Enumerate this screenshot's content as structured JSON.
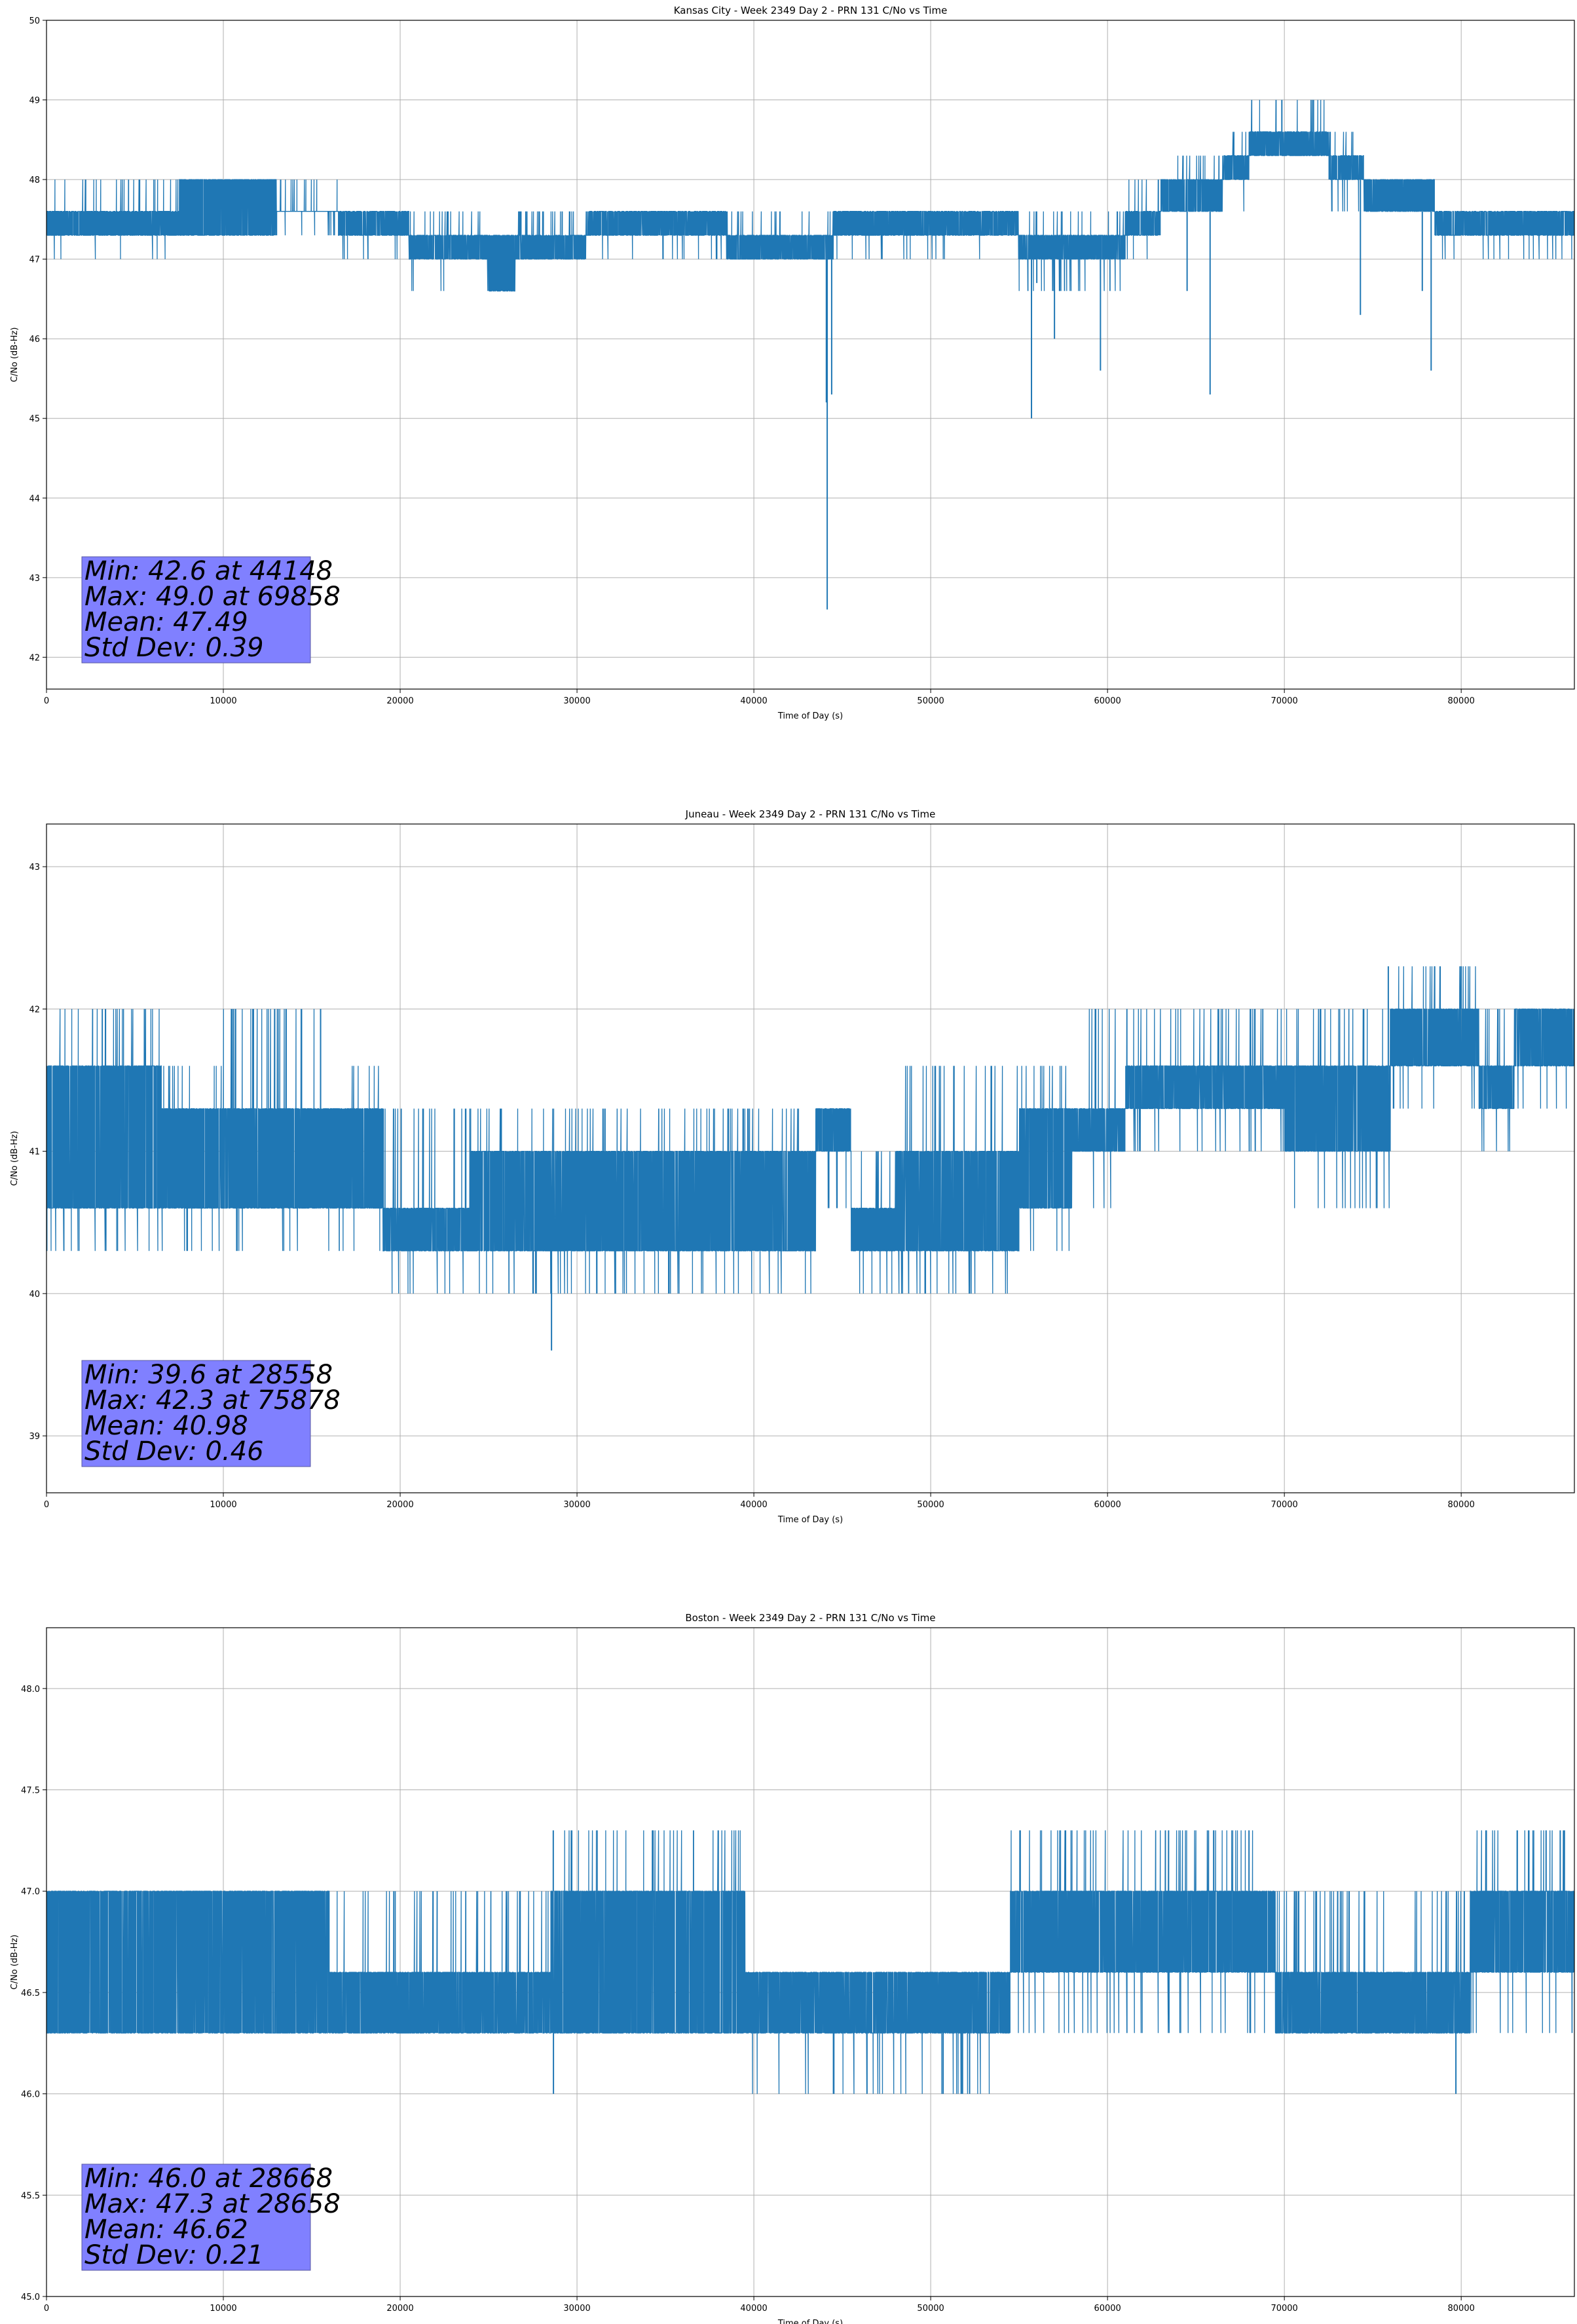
{
  "chart_data": [
    {
      "type": "line",
      "title": "Kansas City - Week 2349 Day 2 - PRN 131 C/No vs Time",
      "xlabel": "Time of Day (s)",
      "ylabel": "C/No (dB-Hz)",
      "xlim": [
        0,
        86400
      ],
      "ylim": [
        41.6,
        50.0
      ],
      "xticks": [
        0,
        10000,
        20000,
        30000,
        40000,
        50000,
        60000,
        70000,
        80000
      ],
      "yticks": [
        42,
        43,
        44,
        45,
        46,
        47,
        48,
        49,
        50
      ],
      "ytick_decimals": 0,
      "grid": true,
      "color": "#1f77b4",
      "bands": [
        {
          "x0": 0,
          "x1": 7500,
          "lo": 47.3,
          "hi": 47.6,
          "spike": 48.0,
          "dip": 47.0
        },
        {
          "x0": 7500,
          "x1": 13000,
          "lo": 47.3,
          "hi": 48.0,
          "spike": 48.0,
          "dip": 47.3
        },
        {
          "x0": 13000,
          "x1": 16500,
          "lo": 47.6,
          "hi": 47.6,
          "spike": 48.0,
          "dip": 47.3
        },
        {
          "x0": 16500,
          "x1": 20500,
          "lo": 47.3,
          "hi": 47.6,
          "spike": 47.6,
          "dip": 47.0
        },
        {
          "x0": 20500,
          "x1": 25000,
          "lo": 47.0,
          "hi": 47.3,
          "spike": 47.6,
          "dip": 46.6
        },
        {
          "x0": 25000,
          "x1": 26500,
          "lo": 46.6,
          "hi": 47.3,
          "spike": 47.3,
          "dip": 46.6
        },
        {
          "x0": 26500,
          "x1": 30500,
          "lo": 47.0,
          "hi": 47.3,
          "spike": 47.6,
          "dip": 47.0
        },
        {
          "x0": 30500,
          "x1": 38500,
          "lo": 47.3,
          "hi": 47.6,
          "spike": 47.6,
          "dip": 47.0
        },
        {
          "x0": 38500,
          "x1": 44500,
          "lo": 47.0,
          "hi": 47.3,
          "spike": 47.6,
          "dip": 47.0
        },
        {
          "x0": 44500,
          "x1": 51000,
          "lo": 47.3,
          "hi": 47.6,
          "spike": 47.6,
          "dip": 47.0
        },
        {
          "x0": 51000,
          "x1": 55000,
          "lo": 47.3,
          "hi": 47.6,
          "spike": 47.6,
          "dip": 47.0
        },
        {
          "x0": 55000,
          "x1": 61000,
          "lo": 47.0,
          "hi": 47.3,
          "spike": 47.6,
          "dip": 46.6
        },
        {
          "x0": 61000,
          "x1": 63000,
          "lo": 47.3,
          "hi": 47.6,
          "spike": 48.0,
          "dip": 47.0
        },
        {
          "x0": 63000,
          "x1": 66500,
          "lo": 47.6,
          "hi": 48.0,
          "spike": 48.3,
          "dip": 47.6
        },
        {
          "x0": 66500,
          "x1": 68000,
          "lo": 48.0,
          "hi": 48.3,
          "spike": 48.6,
          "dip": 47.6
        },
        {
          "x0": 68000,
          "x1": 72500,
          "lo": 48.3,
          "hi": 48.6,
          "spike": 49.0,
          "dip": 48.3
        },
        {
          "x0": 72500,
          "x1": 74500,
          "lo": 48.0,
          "hi": 48.3,
          "spike": 48.6,
          "dip": 47.6
        },
        {
          "x0": 74500,
          "x1": 78500,
          "lo": 47.6,
          "hi": 48.0,
          "spike": 48.0,
          "dip": 47.6
        },
        {
          "x0": 78500,
          "x1": 86400,
          "lo": 47.3,
          "hi": 47.6,
          "spike": 47.6,
          "dip": 47.0
        }
      ],
      "outliers": [
        {
          "x": 44148,
          "y": 42.6
        },
        {
          "x": 44400,
          "y": 45.3
        },
        {
          "x": 44100,
          "y": 45.2
        },
        {
          "x": 55700,
          "y": 45.0
        },
        {
          "x": 56000,
          "y": 46.7
        },
        {
          "x": 57000,
          "y": 46.0
        },
        {
          "x": 57300,
          "y": 46.6
        },
        {
          "x": 59600,
          "y": 45.6
        },
        {
          "x": 64500,
          "y": 46.6
        },
        {
          "x": 65800,
          "y": 45.3
        },
        {
          "x": 69858,
          "y": 49.0
        },
        {
          "x": 74300,
          "y": 46.3
        },
        {
          "x": 77800,
          "y": 46.6
        },
        {
          "x": 78300,
          "y": 45.6
        }
      ],
      "stats": {
        "line1": "Min: 42.6 at 44148",
        "line2": "Max: 49.0 at 69858",
        "line3": "Mean: 47.49",
        "line4": "Std Dev: 0.39"
      }
    },
    {
      "type": "line",
      "title": "Juneau - Week 2349 Day 2 - PRN 131 C/No vs Time",
      "xlabel": "Time of Day (s)",
      "ylabel": "C/No (dB-Hz)",
      "xlim": [
        0,
        86400
      ],
      "ylim": [
        38.6,
        43.3
      ],
      "xticks": [
        0,
        10000,
        20000,
        30000,
        40000,
        50000,
        60000,
        70000,
        80000
      ],
      "yticks": [
        39,
        40,
        41,
        42,
        43
      ],
      "ytick_decimals": 0,
      "grid": true,
      "color": "#1f77b4",
      "bands": [
        {
          "x0": 0,
          "x1": 6500,
          "lo": 40.6,
          "hi": 41.6,
          "spike": 42.0,
          "dip": 40.3
        },
        {
          "x0": 6500,
          "x1": 10000,
          "lo": 40.6,
          "hi": 41.3,
          "spike": 41.6,
          "dip": 40.3
        },
        {
          "x0": 10000,
          "x1": 16500,
          "lo": 40.6,
          "hi": 41.3,
          "spike": 42.0,
          "dip": 40.3
        },
        {
          "x0": 16500,
          "x1": 19000,
          "lo": 40.6,
          "hi": 41.3,
          "spike": 41.6,
          "dip": 40.3
        },
        {
          "x0": 19000,
          "x1": 24000,
          "lo": 40.3,
          "hi": 40.6,
          "spike": 41.3,
          "dip": 40.0
        },
        {
          "x0": 24000,
          "x1": 33000,
          "lo": 40.3,
          "hi": 41.0,
          "spike": 41.3,
          "dip": 40.0
        },
        {
          "x0": 33000,
          "x1": 43500,
          "lo": 40.3,
          "hi": 41.0,
          "spike": 41.3,
          "dip": 40.0
        },
        {
          "x0": 43500,
          "x1": 45500,
          "lo": 41.0,
          "hi": 41.3,
          "spike": 41.3,
          "dip": 40.6
        },
        {
          "x0": 45500,
          "x1": 48000,
          "lo": 40.3,
          "hi": 40.6,
          "spike": 41.0,
          "dip": 40.0
        },
        {
          "x0": 48000,
          "x1": 55000,
          "lo": 40.3,
          "hi": 41.0,
          "spike": 41.6,
          "dip": 40.0
        },
        {
          "x0": 55000,
          "x1": 58000,
          "lo": 40.6,
          "hi": 41.3,
          "spike": 41.6,
          "dip": 40.3
        },
        {
          "x0": 58000,
          "x1": 61000,
          "lo": 41.0,
          "hi": 41.3,
          "spike": 42.0,
          "dip": 40.6
        },
        {
          "x0": 61000,
          "x1": 70000,
          "lo": 41.3,
          "hi": 41.6,
          "spike": 42.0,
          "dip": 41.0
        },
        {
          "x0": 70000,
          "x1": 76000,
          "lo": 41.0,
          "hi": 41.6,
          "spike": 42.0,
          "dip": 40.6
        },
        {
          "x0": 76000,
          "x1": 81000,
          "lo": 41.6,
          "hi": 42.0,
          "spike": 42.3,
          "dip": 41.3
        },
        {
          "x0": 81000,
          "x1": 83000,
          "lo": 41.3,
          "hi": 41.6,
          "spike": 42.0,
          "dip": 41.0
        },
        {
          "x0": 83000,
          "x1": 86400,
          "lo": 41.6,
          "hi": 42.0,
          "spike": 42.0,
          "dip": 41.3
        }
      ],
      "outliers": [
        {
          "x": 28558,
          "y": 39.6
        },
        {
          "x": 75878,
          "y": 42.3
        },
        {
          "x": 78500,
          "y": 42.3
        },
        {
          "x": 80000,
          "y": 42.3
        },
        {
          "x": 15500,
          "y": 42.0
        }
      ],
      "stats": {
        "line1": "Min: 39.6 at 28558",
        "line2": "Max: 42.3 at 75878",
        "line3": "Mean: 40.98",
        "line4": "Std Dev: 0.46"
      }
    },
    {
      "type": "line",
      "title": "Boston - Week 2349 Day 2 - PRN 131 C/No vs Time",
      "xlabel": "Time of Day (s)",
      "ylabel": "C/No (dB-Hz)",
      "xlim": [
        0,
        86400
      ],
      "ylim": [
        45.0,
        48.3
      ],
      "xticks": [
        0,
        10000,
        20000,
        30000,
        40000,
        50000,
        60000,
        70000,
        80000
      ],
      "yticks": [
        45.0,
        45.5,
        46.0,
        46.5,
        47.0,
        47.5,
        48.0
      ],
      "ytick_decimals": 1,
      "grid": true,
      "color": "#1f77b4",
      "bands": [
        {
          "x0": 0,
          "x1": 7500,
          "lo": 46.3,
          "hi": 47.0,
          "spike": 47.0,
          "dip": 46.3
        },
        {
          "x0": 7500,
          "x1": 16000,
          "lo": 46.3,
          "hi": 47.0,
          "spike": 47.0,
          "dip": 46.3
        },
        {
          "x0": 16000,
          "x1": 28500,
          "lo": 46.3,
          "hi": 46.6,
          "spike": 47.0,
          "dip": 46.3
        },
        {
          "x0": 28500,
          "x1": 39500,
          "lo": 46.3,
          "hi": 47.0,
          "spike": 47.3,
          "dip": 46.3
        },
        {
          "x0": 39500,
          "x1": 54500,
          "lo": 46.3,
          "hi": 46.6,
          "spike": 46.6,
          "dip": 46.0
        },
        {
          "x0": 54500,
          "x1": 69500,
          "lo": 46.6,
          "hi": 47.0,
          "spike": 47.3,
          "dip": 46.3
        },
        {
          "x0": 69500,
          "x1": 80500,
          "lo": 46.3,
          "hi": 46.6,
          "spike": 47.0,
          "dip": 46.3
        },
        {
          "x0": 80500,
          "x1": 86400,
          "lo": 46.6,
          "hi": 47.0,
          "spike": 47.3,
          "dip": 46.3
        }
      ],
      "outliers": [
        {
          "x": 28668,
          "y": 46.0
        },
        {
          "x": 28658,
          "y": 47.3
        },
        {
          "x": 34300,
          "y": 47.3
        },
        {
          "x": 44500,
          "y": 46.0
        },
        {
          "x": 50700,
          "y": 46.0
        },
        {
          "x": 51800,
          "y": 46.0
        },
        {
          "x": 52200,
          "y": 46.0
        },
        {
          "x": 79700,
          "y": 46.0
        },
        {
          "x": 66000,
          "y": 47.3
        },
        {
          "x": 68000,
          "y": 47.3
        },
        {
          "x": 84800,
          "y": 47.3
        },
        {
          "x": 85600,
          "y": 47.3
        }
      ],
      "stats": {
        "line1": "Min: 46.0 at 28668",
        "line2": "Max: 47.3 at 28658",
        "line3": "Mean: 46.62",
        "line4": "Std Dev: 0.21"
      }
    }
  ]
}
